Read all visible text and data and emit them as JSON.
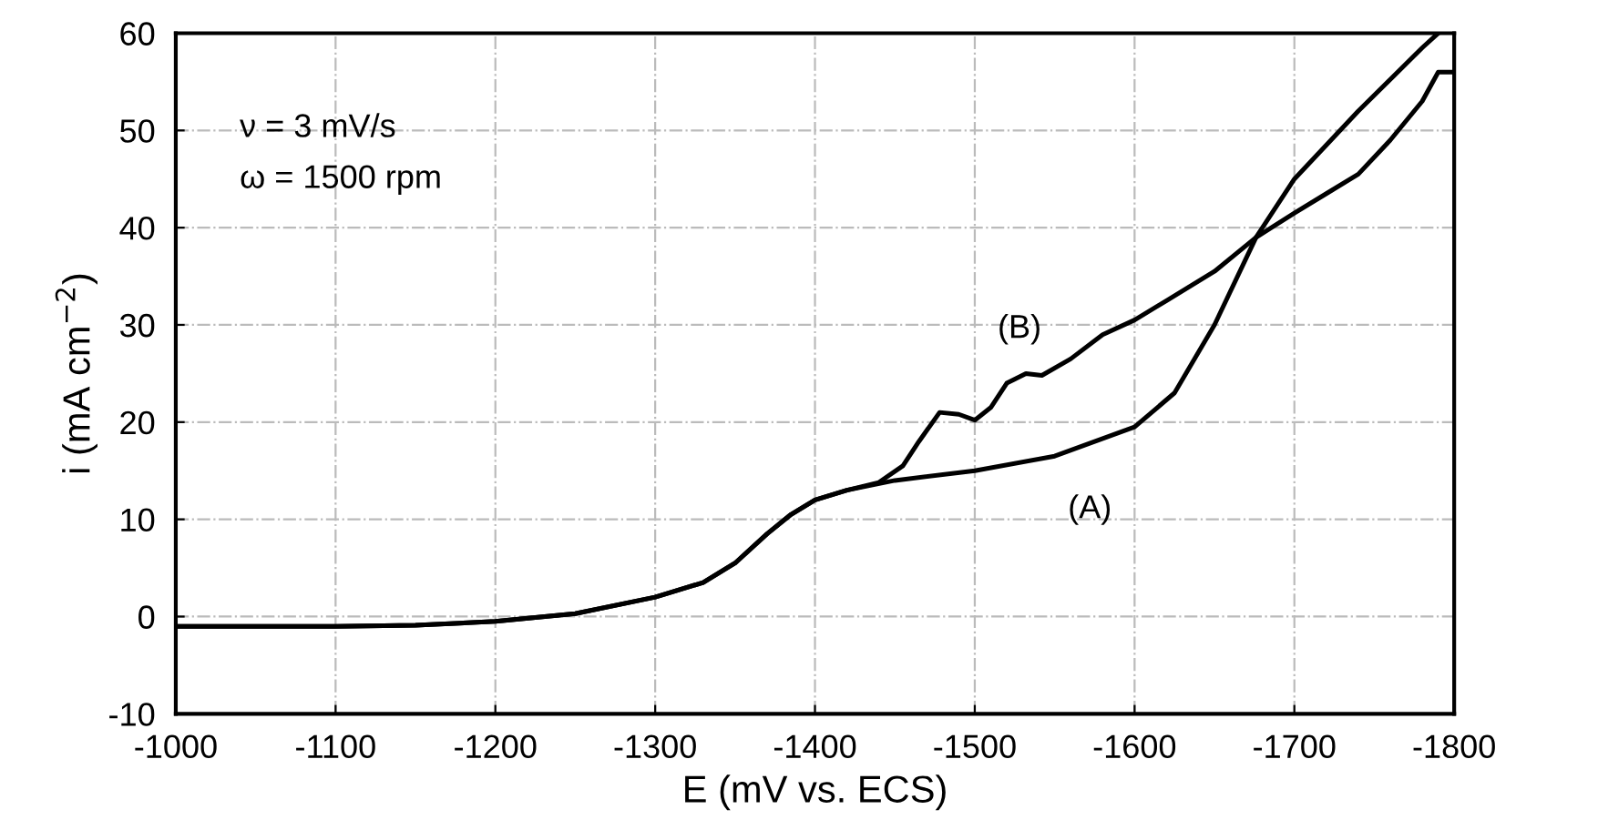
{
  "chart_data": {
    "type": "line",
    "xlabel": "E (mV vs. ECS)",
    "ylabel": "i (mA cm$^{−2}$)",
    "xlim": [
      -1000,
      -1800
    ],
    "xticks": [
      -1000,
      -1100,
      -1200,
      -1300,
      -1400,
      -1500,
      -1600,
      -1700,
      -1800
    ],
    "ylim": [
      -10,
      60
    ],
    "yticks": [
      -10,
      0,
      10,
      20,
      30,
      40,
      50,
      60
    ],
    "grid": true,
    "legend": false,
    "marker": "none",
    "line_style": "solid",
    "series": [
      {
        "color": "#000000",
        "x": [
          -1000,
          -1100,
          -1150,
          -1200,
          -1250,
          -1300,
          -1330,
          -1350,
          -1370,
          -1385,
          -1400,
          -1420,
          -1450,
          -1500,
          -1550,
          -1600,
          -1625,
          -1650,
          -1676,
          -1700,
          -1740,
          -1780,
          -1790
        ],
        "values": [
          -1,
          -1,
          -0.9,
          -0.5,
          0.3,
          2,
          3.5,
          5.5,
          8.5,
          10.5,
          12,
          13,
          14,
          15,
          16.5,
          19.5,
          23,
          30,
          39,
          45,
          52,
          58.5,
          60
        ]
      },
      {
        "color": "#000000",
        "x": [
          -1000,
          -1100,
          -1150,
          -1200,
          -1250,
          -1300,
          -1330,
          -1350,
          -1370,
          -1385,
          -1400,
          -1420,
          -1440,
          -1455,
          -1465,
          -1478,
          -1490,
          -1500,
          -1510,
          -1520,
          -1532,
          -1542,
          -1560,
          -1580,
          -1600,
          -1620,
          -1650,
          -1676,
          -1700,
          -1720,
          -1740,
          -1760,
          -1780,
          -1790,
          -1798
        ],
        "values": [
          -1,
          -1,
          -0.9,
          -0.5,
          0.3,
          2,
          3.5,
          5.5,
          8.5,
          10.5,
          12,
          13,
          13.8,
          15.5,
          18,
          21,
          20.8,
          20.2,
          21.5,
          24,
          25,
          24.8,
          26.5,
          29,
          30.5,
          32.5,
          35.5,
          39,
          41.5,
          43.5,
          45.5,
          49,
          53,
          56,
          56
        ]
      }
    ],
    "annotations": [
      "(A)",
      "(B)",
      "ν = 3 mV/s",
      "ω = 1500 rpm"
    ]
  }
}
